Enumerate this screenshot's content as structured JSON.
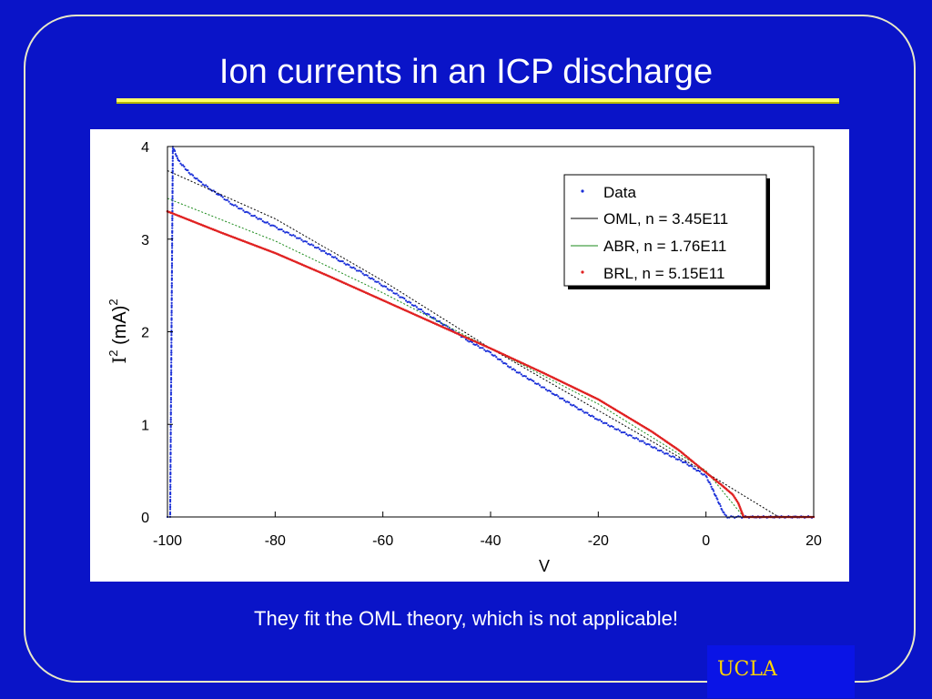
{
  "slide": {
    "title": "Ion currents in an ICP discharge",
    "caption": "They fit the OML theory,  which is not applicable!",
    "badge": "UCLA",
    "colors": {
      "background": "#0a14c8",
      "title_rule": "#ffff66",
      "badge_text": "#ffd400"
    }
  },
  "chart_data": {
    "type": "line",
    "xlabel": "V",
    "ylabel_base": "I",
    "ylabel_sup": "2",
    "ylabel_unit": " (mA)",
    "ylabel_unit_sup": "2",
    "xlim": [
      -100,
      20
    ],
    "ylim": [
      0,
      4
    ],
    "xticks": [
      "-100",
      "-80",
      "-60",
      "-40",
      "-20",
      "0",
      "20"
    ],
    "yticks": [
      "0",
      "1",
      "2",
      "3",
      "4"
    ],
    "grid": false,
    "legend_position": "top-right",
    "series": [
      {
        "name": "Data",
        "color": "#1a2fd8",
        "style": "dots",
        "x": [
          -100,
          -99.5,
          -99,
          -98,
          -96,
          -94,
          -92,
          -90,
          -88,
          -85,
          -82,
          -80,
          -76,
          -72,
          -68,
          -64,
          -60,
          -56,
          -52,
          -48,
          -44,
          -40,
          -36,
          -32,
          -28,
          -24,
          -20,
          -16,
          -12,
          -8,
          -4,
          -2,
          0,
          1,
          2,
          3,
          3.5,
          4,
          6,
          10,
          14,
          20
        ],
        "y": [
          0,
          0,
          4.0,
          3.85,
          3.72,
          3.62,
          3.54,
          3.46,
          3.38,
          3.28,
          3.19,
          3.13,
          3.02,
          2.9,
          2.77,
          2.64,
          2.5,
          2.35,
          2.2,
          2.05,
          1.9,
          1.77,
          1.6,
          1.46,
          1.32,
          1.18,
          1.05,
          0.93,
          0.82,
          0.7,
          0.59,
          0.52,
          0.44,
          0.33,
          0.2,
          0.08,
          0.02,
          0,
          0,
          0,
          0,
          0
        ]
      },
      {
        "name": "OML, n = 3.45E11",
        "color": "#000000",
        "style": "dotted",
        "x": [
          -100,
          -80,
          -60,
          -40,
          -20,
          0,
          13.5
        ],
        "y": [
          3.74,
          3.22,
          2.55,
          1.82,
          1.15,
          0.48,
          0.0
        ]
      },
      {
        "name": "ABR, n = 1.76E11",
        "color": "#1a8a1a",
        "style": "dotted",
        "x": [
          -100,
          -80,
          -60,
          -40,
          -20,
          0,
          7
        ],
        "y": [
          3.44,
          2.98,
          2.42,
          1.82,
          1.22,
          0.5,
          0.0
        ]
      },
      {
        "name": "BRL, n = 5.15E11",
        "color": "#e02020",
        "style": "dots",
        "x": [
          -100,
          -90,
          -80,
          -70,
          -60,
          -50,
          -40,
          -30,
          -20,
          -10,
          -5,
          0,
          3,
          5,
          6,
          7,
          10,
          15,
          20
        ],
        "y": [
          3.3,
          3.07,
          2.85,
          2.6,
          2.34,
          2.08,
          1.82,
          1.55,
          1.27,
          0.92,
          0.72,
          0.48,
          0.34,
          0.24,
          0.15,
          0.0,
          0,
          0,
          0
        ]
      }
    ]
  }
}
